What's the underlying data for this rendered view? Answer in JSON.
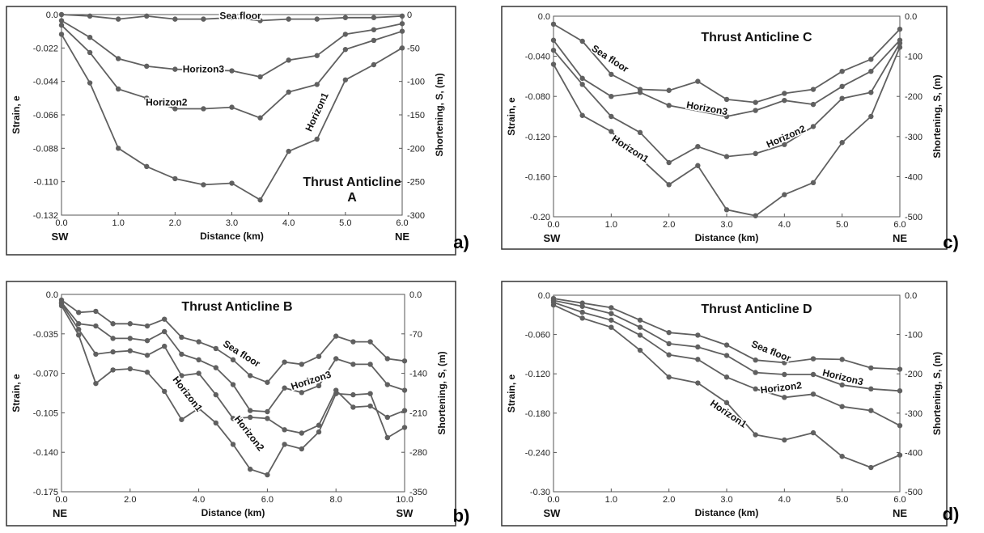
{
  "chart_data": [
    {
      "panel_label": "a)",
      "type": "line",
      "title": "Thrust Anticline\nA",
      "xlabel": "Distance (km)",
      "ylabel": "Strain, e",
      "y2label": "Shortening, S, (m)",
      "left_end": "SW",
      "right_end": "NE",
      "xlim": [
        0,
        6
      ],
      "ylim": [
        -0.132,
        0
      ],
      "y2lim": [
        -300,
        0
      ],
      "xticks": [
        "0.0",
        "1.0",
        "2.0",
        "3.0",
        "4.0",
        "5.0",
        "6.0"
      ],
      "yticks": [
        "0.0",
        "-0.022",
        "-0.044",
        "-0.066",
        "-0.088",
        "-0.110",
        "-0.132"
      ],
      "y2ticks": [
        "0",
        "-50",
        "-100",
        "-150",
        "-200",
        "-250",
        "-300"
      ],
      "x": [
        0,
        0.5,
        1,
        1.5,
        2,
        2.5,
        3,
        3.5,
        4,
        4.5,
        5,
        5.5,
        6
      ],
      "series": [
        {
          "name": "Sea floor",
          "values": [
            0,
            -0.001,
            -0.003,
            -0.001,
            -0.003,
            -0.003,
            -0.002,
            -0.004,
            -0.003,
            -0.003,
            -0.002,
            -0.002,
            -0.001
          ]
        },
        {
          "name": "Horizon3",
          "values": [
            -0.004,
            -0.015,
            -0.029,
            -0.034,
            -0.036,
            null,
            -0.037,
            -0.041,
            -0.03,
            -0.027,
            -0.013,
            -0.01,
            -0.006
          ]
        },
        {
          "name": "Horizon2",
          "values": [
            -0.007,
            -0.025,
            -0.049,
            -0.055,
            -0.062,
            -0.062,
            -0.061,
            -0.068,
            -0.051,
            -0.046,
            -0.023,
            -0.017,
            -0.011
          ]
        },
        {
          "name": "Horizon1",
          "values": [
            -0.013,
            -0.045,
            -0.088,
            -0.1,
            -0.108,
            -0.112,
            -0.111,
            -0.122,
            -0.09,
            -0.082,
            -0.043,
            -0.033,
            -0.022
          ]
        }
      ]
    },
    {
      "panel_label": "b)",
      "type": "line",
      "title": "Thrust Anticline B",
      "xlabel": "Distance (km)",
      "ylabel": "Strain, e",
      "y2label": "Shortening, S, (m)",
      "left_end": "NE",
      "right_end": "SW",
      "xlim": [
        0,
        10
      ],
      "ylim": [
        -0.175,
        0
      ],
      "y2lim": [
        -350,
        0
      ],
      "xticks": [
        "0.0",
        "2.0",
        "4.0",
        "6.0",
        "8.0",
        "10.0"
      ],
      "yticks": [
        "0.0",
        "-0.035",
        "-0.070",
        "-0.105",
        "-0.140",
        "-0.175"
      ],
      "y2ticks": [
        "0.0",
        "-70",
        "-140",
        "-210",
        "-280",
        "-350"
      ],
      "x": [
        0,
        0.5,
        1,
        1.5,
        2,
        2.5,
        3,
        3.5,
        4,
        4.5,
        5,
        5.5,
        6,
        6.5,
        7,
        7.5,
        8,
        8.5,
        9,
        9.5,
        10
      ],
      "series": [
        {
          "name": "Sea floor",
          "values": [
            -0.005,
            -0.016,
            -0.015,
            -0.026,
            -0.026,
            -0.028,
            -0.022,
            -0.038,
            -0.042,
            -0.048,
            -0.058,
            -0.072,
            -0.078,
            -0.06,
            -0.062,
            -0.055,
            -0.037,
            -0.042,
            -0.042,
            -0.057,
            -0.059
          ]
        },
        {
          "name": "Horizon3",
          "values": [
            -0.007,
            -0.026,
            -0.028,
            -0.039,
            -0.039,
            -0.041,
            -0.033,
            -0.053,
            -0.058,
            -0.065,
            -0.08,
            -0.103,
            -0.104,
            -0.083,
            -0.087,
            -0.081,
            -0.057,
            -0.062,
            -0.062,
            -0.08,
            -0.085
          ]
        },
        {
          "name": "Horizon2",
          "values": [
            -0.008,
            -0.031,
            -0.053,
            -0.051,
            -0.05,
            -0.054,
            -0.046,
            -0.072,
            -0.07,
            -0.089,
            -0.11,
            -0.109,
            -0.11,
            -0.12,
            -0.123,
            -0.116,
            -0.085,
            -0.1,
            -0.099,
            -0.109,
            -0.103
          ]
        },
        {
          "name": "Horizon1",
          "values": [
            -0.01,
            -0.036,
            -0.079,
            -0.067,
            -0.066,
            -0.069,
            -0.086,
            -0.111,
            -0.101,
            -0.114,
            -0.133,
            -0.155,
            -0.16,
            -0.133,
            -0.137,
            -0.122,
            -0.088,
            -0.089,
            -0.088,
            -0.127,
            -0.118
          ]
        }
      ]
    },
    {
      "panel_label": "c)",
      "type": "line",
      "title": "Thrust  Anticline C",
      "xlabel": "Distance (km)",
      "ylabel": "Strain, e",
      "y2label": "Shortening, S, (m)",
      "left_end": "SW",
      "right_end": "NE",
      "xlim": [
        0,
        6
      ],
      "ylim": [
        -0.2,
        0
      ],
      "y2lim": [
        -500,
        0
      ],
      "xticks": [
        "0.0",
        "1.0",
        "2.0",
        "3.0",
        "4.0",
        "5.0",
        "6.0"
      ],
      "yticks": [
        "0.0",
        "-0.040",
        "-0.080",
        "-0.120",
        "-0.160",
        "-0.20"
      ],
      "y2ticks": [
        "0.0",
        "-100",
        "-200",
        "-300",
        "-400",
        "-500"
      ],
      "x": [
        0,
        0.5,
        1,
        1.5,
        2,
        2.5,
        3,
        3.5,
        4,
        4.5,
        5,
        5.5,
        6
      ],
      "series": [
        {
          "name": "Sea floor",
          "values": [
            -0.008,
            -0.025,
            -0.058,
            -0.073,
            -0.074,
            -0.065,
            -0.083,
            -0.086,
            -0.077,
            -0.073,
            -0.055,
            -0.043,
            -0.013
          ]
        },
        {
          "name": "Horizon3",
          "values": [
            -0.024,
            -0.062,
            -0.08,
            -0.076,
            -0.089,
            null,
            -0.1,
            -0.094,
            -0.084,
            -0.088,
            -0.07,
            -0.055,
            -0.024
          ]
        },
        {
          "name": "Horizon2",
          "values": [
            -0.034,
            -0.068,
            -0.1,
            -0.116,
            -0.146,
            -0.13,
            -0.14,
            -0.137,
            -0.128,
            -0.11,
            -0.082,
            -0.076,
            -0.027
          ]
        },
        {
          "name": "Horizon1",
          "values": [
            -0.048,
            -0.099,
            -0.115,
            null,
            -0.168,
            -0.149,
            -0.193,
            -0.199,
            -0.178,
            -0.166,
            -0.126,
            -0.1,
            -0.031
          ]
        }
      ]
    },
    {
      "panel_label": "d)",
      "type": "line",
      "title": "Thrust  Anticline D",
      "xlabel": "Distance (km)",
      "ylabel": "Strain, e",
      "y2label": "Shortening, S, (m)",
      "left_end": "SW",
      "right_end": "NE",
      "xlim": [
        0,
        6
      ],
      "ylim": [
        -0.3,
        0
      ],
      "y2lim": [
        -500,
        0
      ],
      "xticks": [
        "0.0",
        "1.0",
        "2.0",
        "3.0",
        "4.0",
        "5.0",
        "6.0"
      ],
      "yticks": [
        "0.0",
        "-0.060",
        "-0.120",
        "-0.180",
        "-0.240",
        "-0.30"
      ],
      "y2ticks": [
        "0.0",
        "-100",
        "-200",
        "-300",
        "-400",
        "-500"
      ],
      "x": [
        0,
        0.5,
        1,
        1.5,
        2,
        2.5,
        3,
        3.5,
        4,
        4.5,
        5,
        5.5,
        6
      ],
      "series": [
        {
          "name": "Sea floor",
          "values": [
            -0.005,
            -0.012,
            -0.019,
            -0.038,
            -0.057,
            -0.061,
            -0.076,
            -0.099,
            -0.103,
            -0.097,
            -0.098,
            -0.111,
            -0.113
          ]
        },
        {
          "name": "Horizon3",
          "values": [
            -0.008,
            -0.017,
            -0.028,
            -0.049,
            -0.074,
            -0.079,
            -0.092,
            -0.118,
            -0.121,
            -0.121,
            -0.137,
            -0.143,
            -0.146
          ]
        },
        {
          "name": "Horizon2",
          "values": [
            -0.011,
            -0.026,
            -0.038,
            -0.061,
            -0.091,
            -0.098,
            -0.125,
            -0.143,
            -0.156,
            -0.151,
            -0.17,
            -0.176,
            -0.199
          ]
        },
        {
          "name": "Horizon1",
          "values": [
            -0.015,
            -0.035,
            -0.049,
            -0.084,
            -0.125,
            -0.134,
            -0.164,
            -0.213,
            -0.221,
            -0.21,
            -0.246,
            -0.263,
            -0.244
          ]
        }
      ]
    }
  ],
  "annotations": [
    [
      {
        "text": "Sea floor",
        "x": 3.15,
        "y": -0.003,
        "rot": 0
      },
      {
        "text": "Horizon3",
        "x": 2.5,
        "y": -0.038,
        "rot": 0
      },
      {
        "text": "Horizon2",
        "x": 1.85,
        "y": -0.06,
        "rot": 0
      },
      {
        "text": "Horizon1",
        "x": 4.55,
        "y": -0.065,
        "rot": -65
      }
    ],
    [
      {
        "text": "Sea floor",
        "x": 5.2,
        "y": -0.055,
        "rot": 32
      },
      {
        "text": "Horizon3",
        "x": 7.3,
        "y": -0.079,
        "rot": -18
      },
      {
        "text": "Horizon2",
        "x": 5.4,
        "y": -0.125,
        "rot": 52
      },
      {
        "text": "Horizon1",
        "x": 3.6,
        "y": -0.09,
        "rot": 52
      }
    ],
    [
      {
        "text": "Sea floor",
        "x": 0.95,
        "y": -0.045,
        "rot": 33
      },
      {
        "text": "Horizon3",
        "x": 2.65,
        "y": -0.095,
        "rot": 10
      },
      {
        "text": "Horizon2",
        "x": 4.05,
        "y": -0.123,
        "rot": -24
      },
      {
        "text": "Horizon1",
        "x": 1.3,
        "y": -0.135,
        "rot": 33
      }
    ],
    [
      {
        "text": "Sea floor",
        "x": 3.75,
        "y": -0.09,
        "rot": 22
      },
      {
        "text": "Horizon3",
        "x": 5.0,
        "y": -0.13,
        "rot": 14
      },
      {
        "text": "Horizon2",
        "x": 3.95,
        "y": -0.146,
        "rot": -7
      },
      {
        "text": "Horizon1",
        "x": 3.0,
        "y": -0.185,
        "rot": 34
      }
    ]
  ],
  "series_color": "#606060",
  "frame_color": "#333333"
}
